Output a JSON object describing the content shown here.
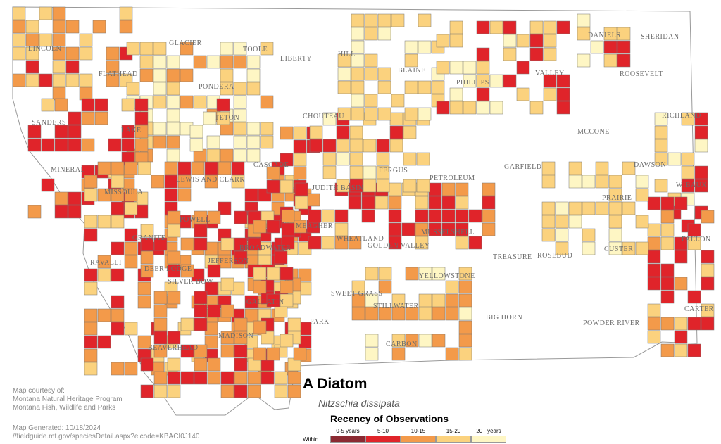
{
  "map": {
    "title": "A Diatom",
    "scientific_name": "Nitzschia dissipata",
    "credits": [
      "Map courtesy of:",
      "Montana Natural Heritage Program",
      "Montana Fish, Wildlife and Parks"
    ],
    "generated": "Map Generated: 10/18/2024",
    "url": "//fieldguide.mt.gov/speciesDetail.aspx?elcode=KBACI0J140",
    "legend": {
      "title": "Recency of Observations",
      "within_label": "Within",
      "items": [
        {
          "label": "0-5 years",
          "color": "#8b2a32"
        },
        {
          "label": "5-10",
          "color": "#e0242a"
        },
        {
          "label": "10-15",
          "color": "#f39a4a"
        },
        {
          "label": "15-20",
          "color": "#fbd27e"
        },
        {
          "label": "20+ years",
          "color": "#fef6c4"
        }
      ]
    },
    "counties": [
      "GLACIER",
      "TOOLE",
      "LIBERTY",
      "HILL",
      "BLAINE",
      "PHILLIPS",
      "VALLEY",
      "DANIELS",
      "SHERIDAN",
      "ROOSEVELT",
      "LINCOLN",
      "FLATHEAD",
      "PONDERA",
      "TETON",
      "CHOUTEAU",
      "SANDERS",
      "LAKE",
      "RICHLAND",
      "MCCONE",
      "CASCADE",
      "MINERAL",
      "LEWIS AND CLARK",
      "FERGUS",
      "PETROLEUM",
      "GARFIELD",
      "DAWSON",
      "WIBAUX",
      "MISSOULA",
      "JUDITH BASIN",
      "PRAIRIE",
      "POWELL",
      "MEAGHER",
      "WHEATLAND",
      "GOLDEN VALLEY",
      "MUSSELSHELL",
      "GRANITE",
      "BROADWATER",
      "ROSEBUD",
      "TREASURE",
      "CUSTER",
      "FALLON",
      "RAVALLI",
      "DEER LODGE",
      "JEFFERSON",
      "SILVER BOW",
      "YELLOWSTONE",
      "SWEET GRASS",
      "STILLWATER",
      "GALLATIN",
      "PARK",
      "BIG HORN",
      "POWDER RIVER",
      "CARTER",
      "MADISON",
      "CARBON",
      "BEAVERHEAD"
    ]
  }
}
